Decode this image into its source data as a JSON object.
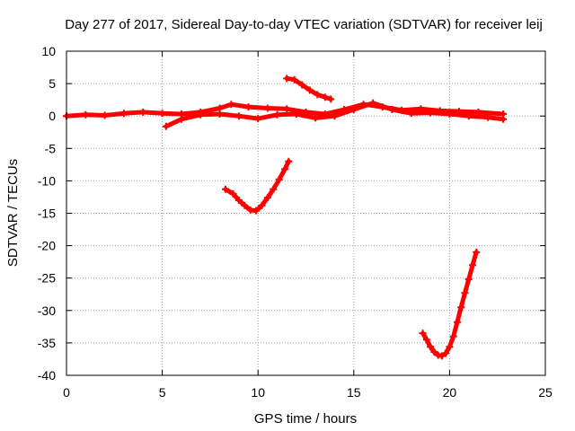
{
  "chart_data": {
    "type": "scatter",
    "title": "Day 277 of 2017, Sidereal Day-to-day VTEC variation (SDTVAR) for receiver leij",
    "xlabel": "GPS time / hours",
    "ylabel": "SDTVAR / TECUs",
    "xlim": [
      0,
      25
    ],
    "ylim": [
      -40,
      10
    ],
    "x_ticks": [
      0,
      5,
      10,
      15,
      20,
      25
    ],
    "y_ticks": [
      10,
      5,
      0,
      -5,
      -10,
      -15,
      -20,
      -25,
      -30,
      -35,
      -40
    ],
    "grid": true,
    "marker": "plus",
    "color": "#ff0000",
    "series": [
      {
        "values": [
          {
            "x": 0.0,
            "y": 0.0
          },
          {
            "x": 1.0,
            "y": 0.2
          },
          {
            "x": 2.0,
            "y": 0.1
          },
          {
            "x": 3.0,
            "y": 0.4
          },
          {
            "x": 4.0,
            "y": 0.6
          },
          {
            "x": 5.0,
            "y": 0.4
          },
          {
            "x": 6.0,
            "y": 0.3
          },
          {
            "x": 7.0,
            "y": 0.6
          },
          {
            "x": 8.0,
            "y": 1.2
          },
          {
            "x": 8.6,
            "y": 1.8
          },
          {
            "x": 9.5,
            "y": 1.4
          },
          {
            "x": 10.5,
            "y": 1.2
          },
          {
            "x": 11.5,
            "y": 1.1
          },
          {
            "x": 12.5,
            "y": 0.6
          },
          {
            "x": 13.5,
            "y": 0.3
          },
          {
            "x": 14.5,
            "y": 1.0
          },
          {
            "x": 15.5,
            "y": 1.8
          },
          {
            "x": 16.5,
            "y": 1.4
          },
          {
            "x": 17.5,
            "y": 0.9
          },
          {
            "x": 18.5,
            "y": 1.1
          },
          {
            "x": 19.5,
            "y": 0.8
          },
          {
            "x": 20.5,
            "y": 0.7
          },
          {
            "x": 21.5,
            "y": 0.6
          },
          {
            "x": 22.8,
            "y": 0.3
          }
        ]
      },
      {
        "values": [
          {
            "x": 5.2,
            "y": -1.6
          },
          {
            "x": 6.0,
            "y": -0.5
          },
          {
            "x": 7.0,
            "y": 0.2
          },
          {
            "x": 8.0,
            "y": 0.3
          },
          {
            "x": 9.0,
            "y": 0.0
          },
          {
            "x": 10.0,
            "y": -0.4
          },
          {
            "x": 11.0,
            "y": 0.2
          },
          {
            "x": 12.0,
            "y": 0.3
          },
          {
            "x": 13.0,
            "y": -0.3
          },
          {
            "x": 14.0,
            "y": 0.0
          },
          {
            "x": 15.0,
            "y": 1.0
          },
          {
            "x": 16.0,
            "y": 2.0
          },
          {
            "x": 17.0,
            "y": 1.0
          },
          {
            "x": 18.0,
            "y": 0.4
          },
          {
            "x": 19.0,
            "y": 0.5
          },
          {
            "x": 20.0,
            "y": 0.3
          },
          {
            "x": 21.0,
            "y": 0.0
          },
          {
            "x": 22.0,
            "y": -0.2
          },
          {
            "x": 22.8,
            "y": -0.5
          }
        ]
      },
      {
        "values": [
          {
            "x": 11.5,
            "y": 5.8
          },
          {
            "x": 11.9,
            "y": 5.6
          },
          {
            "x": 12.3,
            "y": 4.8
          },
          {
            "x": 12.7,
            "y": 4.0
          },
          {
            "x": 13.1,
            "y": 3.3
          },
          {
            "x": 13.5,
            "y": 2.9
          },
          {
            "x": 13.8,
            "y": 2.6
          }
        ]
      },
      {
        "values": [
          {
            "x": 8.3,
            "y": -11.3
          },
          {
            "x": 8.7,
            "y": -12.0
          },
          {
            "x": 9.0,
            "y": -13.0
          },
          {
            "x": 9.3,
            "y": -13.8
          },
          {
            "x": 9.6,
            "y": -14.5
          },
          {
            "x": 9.9,
            "y": -14.6
          },
          {
            "x": 10.2,
            "y": -13.8
          },
          {
            "x": 10.5,
            "y": -12.6
          },
          {
            "x": 10.8,
            "y": -11.3
          },
          {
            "x": 11.1,
            "y": -9.8
          },
          {
            "x": 11.4,
            "y": -8.2
          },
          {
            "x": 11.6,
            "y": -7.0
          }
        ]
      },
      {
        "values": [
          {
            "x": 18.6,
            "y": -33.5
          },
          {
            "x": 18.8,
            "y": -34.5
          },
          {
            "x": 19.0,
            "y": -35.6
          },
          {
            "x": 19.2,
            "y": -36.4
          },
          {
            "x": 19.4,
            "y": -36.9
          },
          {
            "x": 19.6,
            "y": -37.0
          },
          {
            "x": 19.8,
            "y": -36.6
          },
          {
            "x": 20.0,
            "y": -35.6
          },
          {
            "x": 20.2,
            "y": -34.0
          },
          {
            "x": 20.4,
            "y": -31.8
          },
          {
            "x": 20.6,
            "y": -29.5
          },
          {
            "x": 20.8,
            "y": -27.3
          },
          {
            "x": 21.0,
            "y": -25.2
          },
          {
            "x": 21.2,
            "y": -23.0
          },
          {
            "x": 21.4,
            "y": -21.0
          }
        ]
      }
    ]
  }
}
